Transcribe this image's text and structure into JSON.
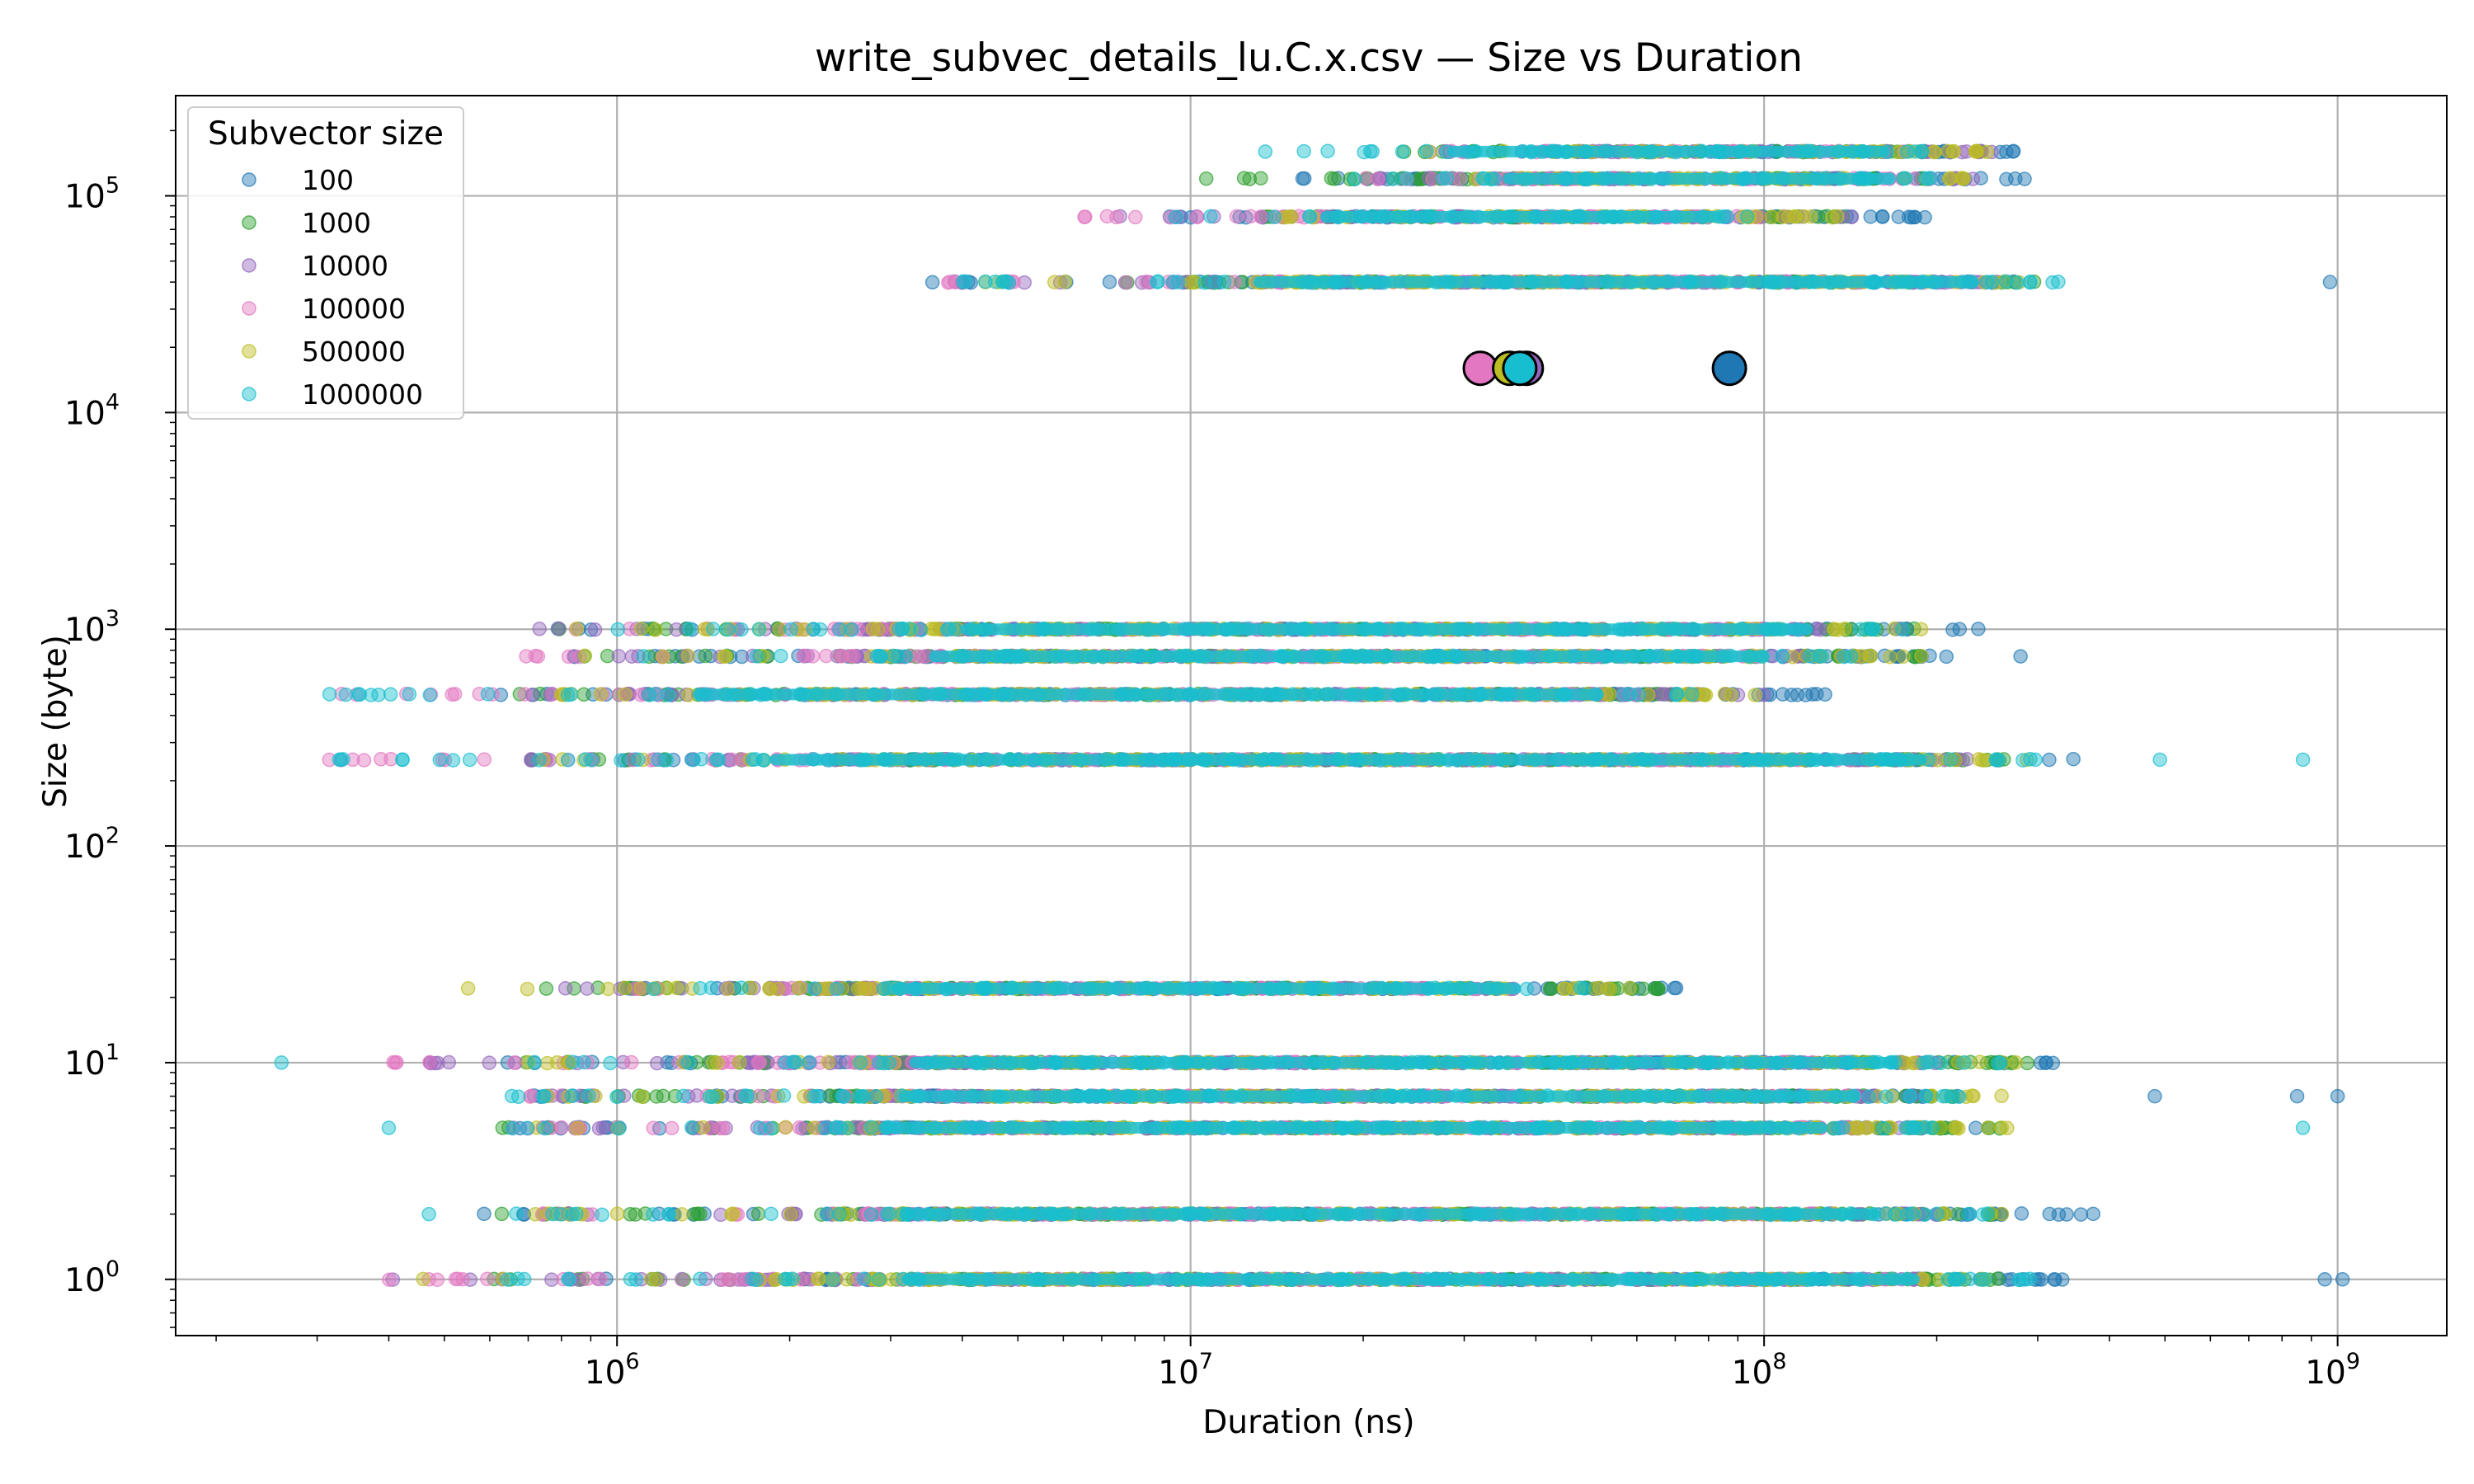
{
  "chart_data": {
    "type": "scatter",
    "title": "write_subvec_details_lu.C.x.csv — Size vs Duration",
    "xlabel": "Duration (ns)",
    "ylabel": "Size (byte)",
    "xscale": "log",
    "yscale": "log",
    "xlim": [
      170000,
      1550000000
    ],
    "ylim": [
      0.55,
      290000
    ],
    "grid": true,
    "x_ticks": [
      {
        "value": 1000000,
        "base": "10",
        "exp": "6"
      },
      {
        "value": 10000000,
        "base": "10",
        "exp": "7"
      },
      {
        "value": 100000000,
        "base": "10",
        "exp": "8"
      },
      {
        "value": 1000000000,
        "base": "10",
        "exp": "9"
      }
    ],
    "y_ticks": [
      {
        "value": 1,
        "base": "10",
        "exp": "0"
      },
      {
        "value": 10,
        "base": "10",
        "exp": "1"
      },
      {
        "value": 100,
        "base": "10",
        "exp": "2"
      },
      {
        "value": 1000,
        "base": "10",
        "exp": "3"
      },
      {
        "value": 10000,
        "base": "10",
        "exp": "4"
      },
      {
        "value": 100000,
        "base": "10",
        "exp": "5"
      }
    ],
    "legend": {
      "title": "Subvector size",
      "location": "upper-left",
      "entries": [
        "100",
        "1000",
        "10000",
        "100000",
        "500000",
        "1000000"
      ]
    },
    "series": [
      {
        "name": "100",
        "color": "#1f77b4",
        "bands": [
          {
            "size": 1,
            "x_min": 550000,
            "x_max": 340000000
          },
          {
            "size": 2,
            "x_min": 560000,
            "x_max": 380000000
          },
          {
            "size": 5,
            "x_min": 600000,
            "x_max": 280000000
          },
          {
            "size": 7,
            "x_min": 650000,
            "x_max": 250000000
          },
          {
            "size": 10,
            "x_min": 620000,
            "x_max": 320000000
          },
          {
            "size": 22,
            "x_min": 850000,
            "x_max": 80000000
          },
          {
            "size": 250,
            "x_min": 600000,
            "x_max": 350000000
          },
          {
            "size": 500,
            "x_min": 600000,
            "x_max": 130000000
          },
          {
            "size": 750,
            "x_min": 700000,
            "x_max": 220000000
          },
          {
            "size": 1000,
            "x_min": 780000,
            "x_max": 240000000
          },
          {
            "size": 40000,
            "x_min": 3500000,
            "x_max": 330000000
          },
          {
            "size": 80000,
            "x_min": 7000000,
            "x_max": 200000000
          },
          {
            "size": 120000,
            "x_min": 10500000,
            "x_max": 290000000
          },
          {
            "size": 160000,
            "x_min": 25000000,
            "x_max": 300000000
          }
        ],
        "outliers": [
          {
            "x": 950000000,
            "y": 1
          },
          {
            "x": 1020000000,
            "y": 1
          },
          {
            "x": 1000000000,
            "y": 7
          },
          {
            "x": 850000000,
            "y": 7
          },
          {
            "x": 480000000,
            "y": 7
          },
          {
            "x": 970000000,
            "y": 40000
          },
          {
            "x": 280000000,
            "y": 750
          }
        ],
        "mean": {
          "x": 87000000,
          "y": 16000
        }
      },
      {
        "name": "1000",
        "color": "#2ca02c",
        "bands": [
          {
            "size": 1,
            "x_min": 600000,
            "x_max": 260000000
          },
          {
            "size": 2,
            "x_min": 600000,
            "x_max": 250000000
          },
          {
            "size": 5,
            "x_min": 620000,
            "x_max": 260000000
          },
          {
            "size": 7,
            "x_min": 650000,
            "x_max": 230000000
          },
          {
            "size": 10,
            "x_min": 650000,
            "x_max": 290000000
          },
          {
            "size": 22,
            "x_min": 750000,
            "x_max": 70000000
          },
          {
            "size": 250,
            "x_min": 620000,
            "x_max": 270000000
          },
          {
            "size": 500,
            "x_min": 650000,
            "x_max": 80000000
          },
          {
            "size": 750,
            "x_min": 750000,
            "x_max": 200000000
          },
          {
            "size": 1000,
            "x_min": 780000,
            "x_max": 200000000
          },
          {
            "size": 40000,
            "x_min": 4000000,
            "x_max": 300000000
          },
          {
            "size": 80000,
            "x_min": 13000000,
            "x_max": 140000000
          },
          {
            "size": 120000,
            "x_min": 10500000,
            "x_max": 200000000
          },
          {
            "size": 160000,
            "x_min": 22000000,
            "x_max": 250000000
          }
        ],
        "outliers": [],
        "mean": null
      },
      {
        "name": "10000",
        "color": "#9467bd",
        "bands": [
          {
            "size": 1,
            "x_min": 400000,
            "x_max": 200000000
          },
          {
            "size": 2,
            "x_min": 650000,
            "x_max": 200000000
          },
          {
            "size": 5,
            "x_min": 650000,
            "x_max": 200000000
          },
          {
            "size": 7,
            "x_min": 700000,
            "x_max": 200000000
          },
          {
            "size": 10,
            "x_min": 420000,
            "x_max": 200000000
          },
          {
            "size": 22,
            "x_min": 750000,
            "x_max": 40000000
          },
          {
            "size": 250,
            "x_min": 650000,
            "x_max": 250000000
          },
          {
            "size": 500,
            "x_min": 700000,
            "x_max": 100000000
          },
          {
            "size": 750,
            "x_min": 800000,
            "x_max": 150000000
          },
          {
            "size": 1000,
            "x_min": 720000,
            "x_max": 180000000
          },
          {
            "size": 40000,
            "x_min": 3800000,
            "x_max": 260000000
          },
          {
            "size": 80000,
            "x_min": 7000000,
            "x_max": 150000000
          },
          {
            "size": 120000,
            "x_min": 20000000,
            "x_max": 250000000
          },
          {
            "size": 160000,
            "x_min": 25000000,
            "x_max": 250000000
          }
        ],
        "outliers": [],
        "mean": {
          "x": 38500000,
          "y": 16000
        }
      },
      {
        "name": "100000",
        "color": "#e377c2",
        "bands": [
          {
            "size": 1,
            "x_min": 390000,
            "x_max": 200000000
          },
          {
            "size": 2,
            "x_min": 700000,
            "x_max": 150000000
          },
          {
            "size": 5,
            "x_min": 650000,
            "x_max": 150000000
          },
          {
            "size": 7,
            "x_min": 700000,
            "x_max": 150000000
          },
          {
            "size": 10,
            "x_min": 400000,
            "x_max": 150000000
          },
          {
            "size": 22,
            "x_min": 800000,
            "x_max": 35000000
          },
          {
            "size": 250,
            "x_min": 310000,
            "x_max": 200000000
          },
          {
            "size": 500,
            "x_min": 330000,
            "x_max": 60000000
          },
          {
            "size": 750,
            "x_min": 650000,
            "x_max": 100000000
          },
          {
            "size": 1000,
            "x_min": 780000,
            "x_max": 100000000
          },
          {
            "size": 40000,
            "x_min": 3500000,
            "x_max": 200000000
          },
          {
            "size": 80000,
            "x_min": 6500000,
            "x_max": 100000000
          },
          {
            "size": 120000,
            "x_min": 20000000,
            "x_max": 200000000
          },
          {
            "size": 160000,
            "x_min": 25000000,
            "x_max": 200000000
          }
        ],
        "outliers": [
          {
            "x": 470000,
            "y": 1
          },
          {
            "x": 5800000,
            "y": 500
          }
        ],
        "mean": {
          "x": 32000000,
          "y": 16000
        }
      },
      {
        "name": "500000",
        "color": "#bcbd22",
        "bands": [
          {
            "size": 1,
            "x_min": 420000,
            "x_max": 260000000
          },
          {
            "size": 2,
            "x_min": 650000,
            "x_max": 260000000
          },
          {
            "size": 5,
            "x_min": 650000,
            "x_max": 280000000
          },
          {
            "size": 7,
            "x_min": 700000,
            "x_max": 260000000
          },
          {
            "size": 10,
            "x_min": 650000,
            "x_max": 280000000
          },
          {
            "size": 22,
            "x_min": 600000,
            "x_max": 60000000
          },
          {
            "size": 250,
            "x_min": 650000,
            "x_max": 300000000
          },
          {
            "size": 500,
            "x_min": 700000,
            "x_max": 100000000
          },
          {
            "size": 750,
            "x_min": 800000,
            "x_max": 200000000
          },
          {
            "size": 1000,
            "x_min": 850000,
            "x_max": 200000000
          },
          {
            "size": 40000,
            "x_min": 4000000,
            "x_max": 300000000
          },
          {
            "size": 80000,
            "x_min": 13000000,
            "x_max": 140000000
          },
          {
            "size": 120000,
            "x_min": 22000000,
            "x_max": 250000000
          },
          {
            "size": 160000,
            "x_min": 25000000,
            "x_max": 260000000
          }
        ],
        "outliers": [
          {
            "x": 550000,
            "y": 22
          },
          {
            "x": 5800000,
            "y": 750
          }
        ],
        "mean": {
          "x": 36000000,
          "y": 16000
        }
      },
      {
        "name": "1000000",
        "color": "#17becf",
        "bands": [
          {
            "size": 1,
            "x_min": 600000,
            "x_max": 300000000
          },
          {
            "size": 2,
            "x_min": 650000,
            "x_max": 250000000
          },
          {
            "size": 5,
            "x_min": 620000,
            "x_max": 200000000
          },
          {
            "size": 7,
            "x_min": 650000,
            "x_max": 230000000
          },
          {
            "size": 10,
            "x_min": 650000,
            "x_max": 270000000
          },
          {
            "size": 22,
            "x_min": 1100000,
            "x_max": 50000000
          },
          {
            "size": 250,
            "x_min": 280000,
            "x_max": 330000000
          },
          {
            "size": 500,
            "x_min": 310000,
            "x_max": 80000000
          },
          {
            "size": 750,
            "x_min": 900000,
            "x_max": 150000000
          },
          {
            "size": 1000,
            "x_min": 1000000,
            "x_max": 180000000
          },
          {
            "size": 40000,
            "x_min": 4000000,
            "x_max": 330000000
          },
          {
            "size": 80000,
            "x_min": 9000000,
            "x_max": 100000000
          },
          {
            "size": 120000,
            "x_min": 19000000,
            "x_max": 200000000
          },
          {
            "size": 160000,
            "x_min": 14000000,
            "x_max": 200000000
          }
        ],
        "outliers": [
          {
            "x": 260000,
            "y": 10
          },
          {
            "x": 400000,
            "y": 5
          },
          {
            "x": 470000,
            "y": 2
          },
          {
            "x": 870000000,
            "y": 250
          },
          {
            "x": 490000000,
            "y": 250
          },
          {
            "x": 870000000,
            "y": 5
          },
          {
            "x": 1400000,
            "y": 500
          },
          {
            "x": 4400000,
            "y": 22
          },
          {
            "x": 13500000,
            "y": 160000
          }
        ],
        "mean": {
          "x": 37500000,
          "y": 16000
        }
      }
    ]
  }
}
